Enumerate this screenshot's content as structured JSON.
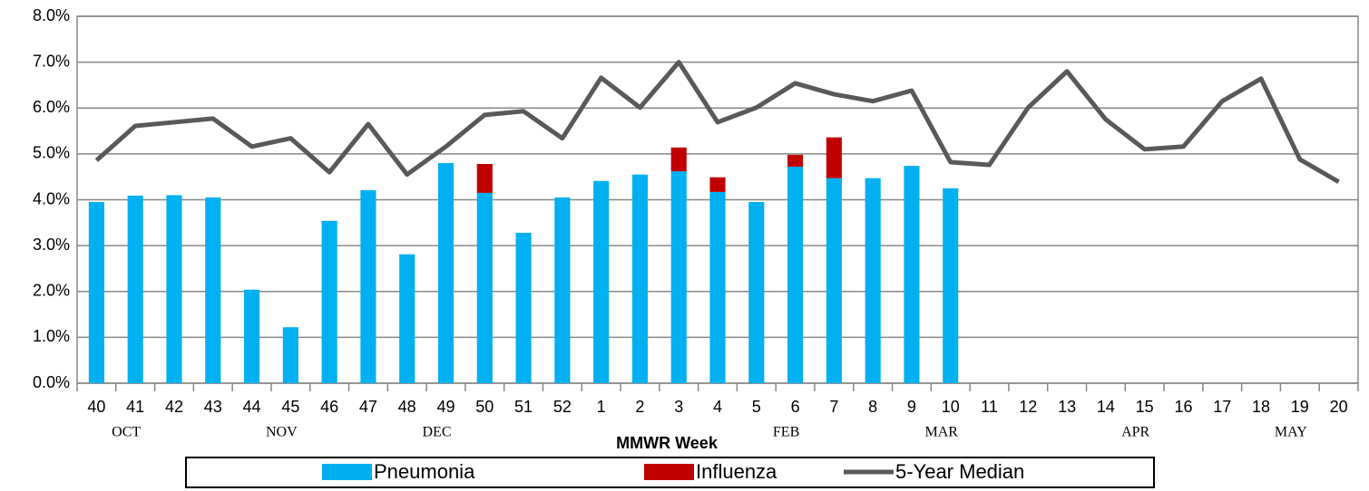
{
  "chart_data": {
    "type": "bar",
    "categories": [
      "40",
      "41",
      "42",
      "43",
      "44",
      "45",
      "46",
      "47",
      "48",
      "49",
      "50",
      "51",
      "52",
      "1",
      "2",
      "3",
      "4",
      "5",
      "6",
      "7",
      "8",
      "9",
      "10",
      "11",
      "12",
      "13",
      "14",
      "15",
      "16",
      "17",
      "18",
      "19",
      "20"
    ],
    "month_labels": [
      null,
      "OCT",
      null,
      null,
      null,
      "NOV",
      null,
      null,
      null,
      "DEC",
      null,
      null,
      null,
      null,
      null,
      null,
      null,
      null,
      "FEB",
      null,
      null,
      null,
      "MAR",
      null,
      null,
      null,
      null,
      "APR",
      null,
      null,
      null,
      "MAY",
      null
    ],
    "x_label": "MMWR Week",
    "stacked": true,
    "series": [
      {
        "name": "Pneumonia",
        "kind": "bar",
        "color": "#00b0f0",
        "values": [
          3.95,
          4.09,
          4.1,
          4.05,
          2.04,
          1.22,
          3.54,
          4.21,
          2.81,
          4.8,
          4.15,
          3.28,
          4.05,
          4.41,
          4.55,
          4.62,
          4.17,
          3.95,
          4.72,
          4.47,
          4.47,
          4.74,
          4.25,
          null,
          null,
          null,
          null,
          null,
          null,
          null,
          null,
          null,
          null
        ]
      },
      {
        "name": "Influenza",
        "kind": "bar",
        "color": "#c00000",
        "values": [
          null,
          null,
          null,
          null,
          null,
          null,
          null,
          null,
          null,
          null,
          0.63,
          null,
          null,
          null,
          null,
          0.52,
          0.32,
          null,
          0.26,
          0.89,
          null,
          null,
          null,
          null,
          null,
          null,
          null,
          null,
          null,
          null,
          null,
          null,
          null
        ]
      },
      {
        "name": "5-Year Median",
        "kind": "line",
        "color": "#595959",
        "values": [
          4.86,
          5.61,
          5.69,
          5.77,
          5.16,
          5.34,
          4.6,
          5.65,
          4.55,
          5.16,
          5.85,
          5.93,
          5.34,
          6.66,
          6.01,
          7.0,
          5.69,
          6.01,
          6.54,
          6.3,
          6.15,
          6.38,
          4.82,
          4.76,
          6.01,
          6.8,
          5.75,
          5.1,
          5.16,
          6.15,
          6.64,
          4.88,
          4.39
        ]
      }
    ],
    "ylim": [
      0,
      8
    ],
    "yticks": [
      {
        "value": 0,
        "label": "0.0%"
      },
      {
        "value": 1,
        "label": "1.0%"
      },
      {
        "value": 2,
        "label": "2.0%"
      },
      {
        "value": 3,
        "label": "3.0%"
      },
      {
        "value": 4,
        "label": "4.0%"
      },
      {
        "value": 5,
        "label": "5.0%"
      },
      {
        "value": 6,
        "label": "6.0%"
      },
      {
        "value": 7,
        "label": "7.0%"
      },
      {
        "value": 8,
        "label": "8.0%"
      }
    ],
    "grid": true,
    "legend": "bottom"
  }
}
